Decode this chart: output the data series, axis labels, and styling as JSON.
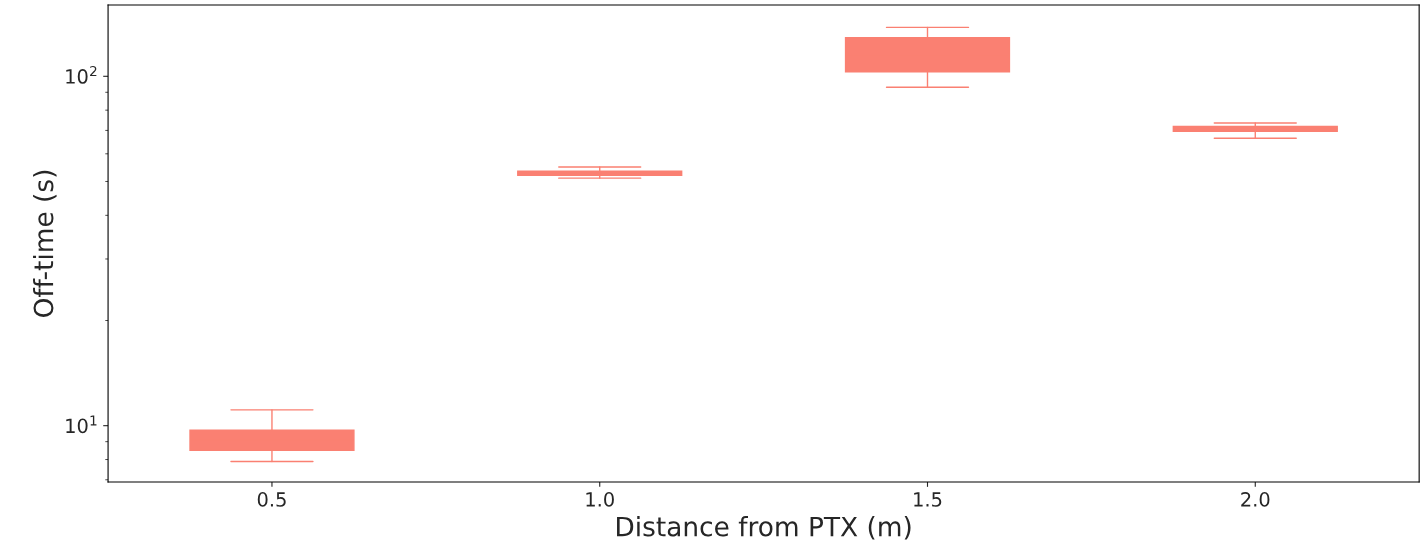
{
  "chart_data": {
    "type": "box",
    "xlabel": "Distance from PTX (m)",
    "ylabel": "Off-time (s)",
    "categories": [
      "0.5",
      "1.0",
      "1.5",
      "2.0"
    ],
    "boxes": [
      {
        "low": 7.9,
        "q1": 8.5,
        "median": 9.1,
        "q3": 9.7,
        "high": 11.1
      },
      {
        "low": 51.1,
        "q1": 52.1,
        "median": 52.8,
        "q3": 53.5,
        "high": 55.0
      },
      {
        "low": 93,
        "q1": 103,
        "median": 115,
        "q3": 129,
        "high": 138
      },
      {
        "low": 66.5,
        "q1": 69.6,
        "median": 70.8,
        "q3": 71.9,
        "high": 73.5
      }
    ],
    "color": "#fa8072",
    "log": "y",
    "ylim": [
      6.9,
      160
    ],
    "yticks": [
      {
        "value": 10,
        "label": "10$^{1}$"
      },
      {
        "value": 100,
        "label": "10$^{2}$"
      }
    ],
    "grid": false,
    "legend": false
  }
}
